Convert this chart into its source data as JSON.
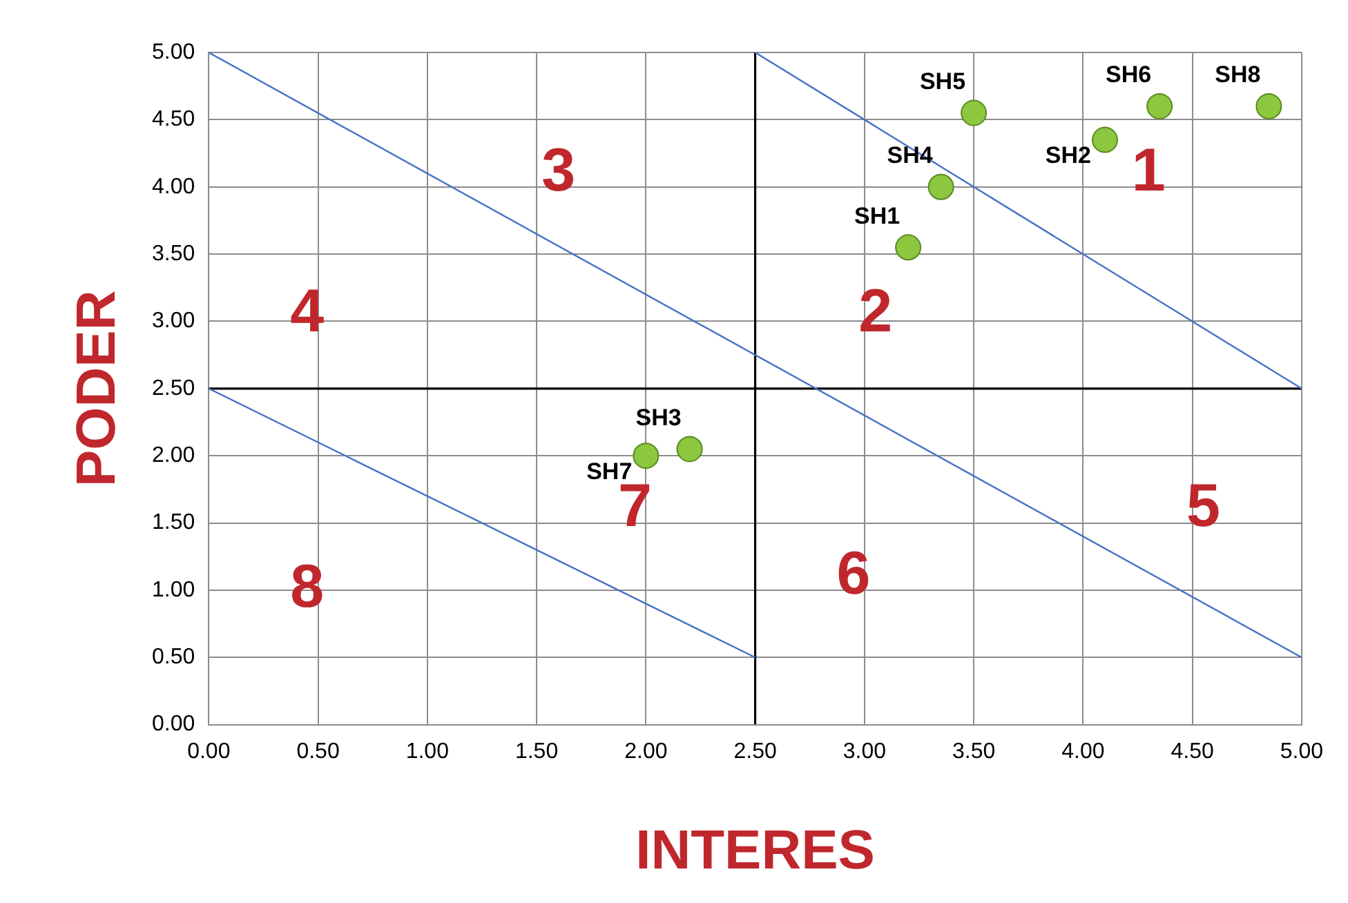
{
  "chart_data": {
    "type": "scatter",
    "xlabel": "INTERES",
    "ylabel": "PODER",
    "xlim": [
      0,
      5
    ],
    "ylim": [
      0,
      5
    ],
    "xticks": [
      {
        "value": 0,
        "label": "0.00"
      },
      {
        "value": 0.5,
        "label": "0.50"
      },
      {
        "value": 1,
        "label": "1.00"
      },
      {
        "value": 1.5,
        "label": "1.50"
      },
      {
        "value": 2,
        "label": "2.00"
      },
      {
        "value": 2.5,
        "label": "2.50"
      },
      {
        "value": 3,
        "label": "3.00"
      },
      {
        "value": 3.5,
        "label": "3.50"
      },
      {
        "value": 4,
        "label": "4.00"
      },
      {
        "value": 4.5,
        "label": "4.50"
      },
      {
        "value": 5,
        "label": "5.00"
      }
    ],
    "yticks": [
      {
        "value": 0,
        "label": "0.00"
      },
      {
        "value": 0.5,
        "label": "0.50"
      },
      {
        "value": 1,
        "label": "1.00"
      },
      {
        "value": 1.5,
        "label": "1.50"
      },
      {
        "value": 2,
        "label": "2.00"
      },
      {
        "value": 2.5,
        "label": "2.50"
      },
      {
        "value": 3,
        "label": "3.00"
      },
      {
        "value": 3.5,
        "label": "3.50"
      },
      {
        "value": 4,
        "label": "4.00"
      },
      {
        "value": 4.5,
        "label": "4.50"
      },
      {
        "value": 5,
        "label": "5.00"
      }
    ],
    "grid": true,
    "legend": false,
    "marker": "circle",
    "series": [
      {
        "name": "SH1",
        "color": "#8dc63f",
        "x": [
          3.2
        ],
        "values": [
          3.55
        ]
      },
      {
        "name": "SH2",
        "color": "#8dc63f",
        "x": [
          4.1
        ],
        "values": [
          4.35
        ]
      },
      {
        "name": "SH3",
        "color": "#8dc63f",
        "x": [
          2.2
        ],
        "values": [
          2.05
        ]
      },
      {
        "name": "SH4",
        "color": "#8dc63f",
        "x": [
          3.35
        ],
        "values": [
          4
        ]
      },
      {
        "name": "SH5",
        "color": "#8dc63f",
        "x": [
          3.5
        ],
        "values": [
          4.55
        ]
      },
      {
        "name": "SH6",
        "color": "#8dc63f",
        "x": [
          4.35
        ],
        "values": [
          4.6
        ]
      },
      {
        "name": "SH7",
        "color": "#8dc63f",
        "x": [
          2
        ],
        "values": [
          2
        ]
      },
      {
        "name": "SH8",
        "color": "#8dc63f",
        "x": [
          4.85
        ],
        "values": [
          4.6
        ]
      },
      {
        "type": "line",
        "marker": "none",
        "color": "#4472c4",
        "x": [
          0,
          5
        ],
        "values": [
          5,
          0.5
        ]
      },
      {
        "type": "line",
        "marker": "none",
        "color": "#4472c4",
        "x": [
          2.5,
          5
        ],
        "values": [
          5,
          2.5
        ]
      },
      {
        "type": "line",
        "marker": "none",
        "color": "#4472c4",
        "x": [
          0,
          2.5
        ],
        "values": [
          2.5,
          0.5
        ]
      },
      {
        "type": "line",
        "marker": "none",
        "color": "#000000",
        "x": [
          2.5,
          2.5
        ],
        "values": [
          0,
          5
        ]
      },
      {
        "type": "line",
        "marker": "none",
        "color": "#000000",
        "x": [
          0,
          5
        ],
        "values": [
          2.5,
          2.5
        ]
      }
    ],
    "annotations": [
      "1",
      "2",
      "3",
      "4",
      "5",
      "6",
      "7",
      "8"
    ]
  }
}
